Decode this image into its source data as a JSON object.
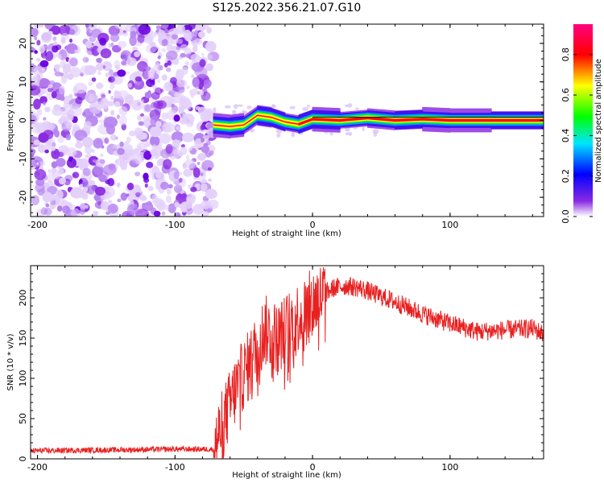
{
  "figure": {
    "title": "S125.2022.356.21.07.G10"
  },
  "chart_data": [
    {
      "type": "heatmap",
      "xlabel": "Height of straight line (km)",
      "ylabel": "Frequency (Hz)",
      "xlim": [
        -205,
        168
      ],
      "ylim": [
        -25,
        25
      ],
      "x_ticks": [
        -200,
        -100,
        0,
        100
      ],
      "y_ticks": [
        -20,
        -10,
        0,
        10,
        20
      ],
      "colorbar": {
        "label": "Normalized spectral amplitude",
        "range": [
          0,
          0.95
        ],
        "ticks": [
          0.0,
          0.2,
          0.4,
          0.6,
          0.8
        ],
        "colormap": [
          "#ffffff",
          "#8a2be2",
          "#0000ff",
          "#00e5ff",
          "#00ff00",
          "#ffff00",
          "#ff0000",
          "#ff007f"
        ]
      },
      "noise_region_x": [
        -205,
        -72
      ],
      "signal_track": [
        {
          "x": -72,
          "y": -1.2,
          "a": 0.75
        },
        {
          "x": -60,
          "y": -1.6,
          "a": 0.85
        },
        {
          "x": -50,
          "y": -1.2,
          "a": 0.7
        },
        {
          "x": -40,
          "y": 1.3,
          "a": 0.8
        },
        {
          "x": -30,
          "y": 0.8,
          "a": 0.85
        },
        {
          "x": -20,
          "y": -0.4,
          "a": 0.8
        },
        {
          "x": -10,
          "y": -1.0,
          "a": 0.85
        },
        {
          "x": 0,
          "y": 0.3,
          "a": 0.9
        },
        {
          "x": 20,
          "y": 0.0,
          "a": 0.95
        },
        {
          "x": 40,
          "y": 0.6,
          "a": 0.9
        },
        {
          "x": 60,
          "y": 0.0,
          "a": 0.95
        },
        {
          "x": 80,
          "y": 0.3,
          "a": 0.9
        },
        {
          "x": 100,
          "y": 0.0,
          "a": 0.95
        },
        {
          "x": 130,
          "y": 0.0,
          "a": 0.95
        },
        {
          "x": 168,
          "y": 0.0,
          "a": 0.95
        }
      ]
    },
    {
      "type": "line",
      "xlabel": "Height of straight line (km)",
      "ylabel": "SNR (10 * v/v)",
      "xlim": [
        -205,
        168
      ],
      "ylim": [
        0,
        240
      ],
      "x_ticks": [
        -200,
        -100,
        0,
        100
      ],
      "y_ticks": [
        0,
        50,
        100,
        150,
        200
      ],
      "color": "#e82020",
      "series": [
        {
          "x": [
            -205,
            -150,
            -100,
            -72,
            -65,
            -55,
            -45,
            -35,
            -25,
            -15,
            -5,
            5,
            15,
            25,
            35,
            45,
            60,
            80,
            100,
            120,
            140,
            160,
            168
          ],
          "y": [
            10,
            11,
            12,
            12,
            45,
            90,
            120,
            160,
            150,
            170,
            185,
            200,
            212,
            215,
            212,
            205,
            195,
            180,
            168,
            158,
            160,
            162,
            155
          ]
        }
      ]
    }
  ]
}
